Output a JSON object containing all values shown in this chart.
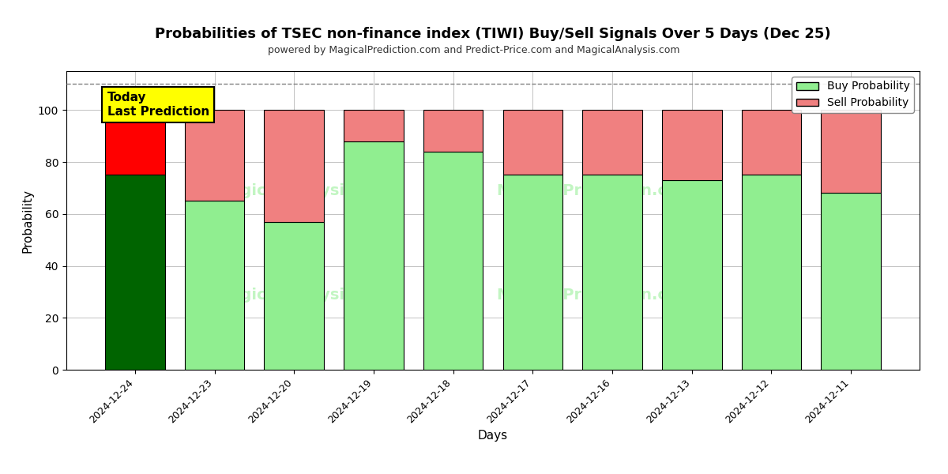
{
  "title": "Probabilities of TSEC non-finance index (TIWI) Buy/Sell Signals Over 5 Days (Dec 25)",
  "subtitle": "powered by MagicalPrediction.com and Predict-Price.com and MagicalAnalysis.com",
  "xlabel": "Days",
  "ylabel": "Probability",
  "categories": [
    "2024-12-24",
    "2024-12-23",
    "2024-12-20",
    "2024-12-19",
    "2024-12-18",
    "2024-12-17",
    "2024-12-16",
    "2024-12-13",
    "2024-12-12",
    "2024-12-11"
  ],
  "buy_values": [
    75,
    65,
    57,
    88,
    84,
    75,
    75,
    73,
    75,
    68
  ],
  "sell_values": [
    25,
    35,
    43,
    12,
    16,
    25,
    25,
    27,
    25,
    32
  ],
  "today_index": 0,
  "buy_color_today": "#006400",
  "sell_color_today": "#FF0000",
  "buy_color_normal": "#90EE90",
  "sell_color_normal": "#F08080",
  "today_label_bg": "#FFFF00",
  "today_label_text": "Today\nLast Prediction",
  "legend_buy": "Buy Probability",
  "legend_sell": "Sell Probability",
  "ylim": [
    0,
    115
  ],
  "yticks": [
    0,
    20,
    40,
    60,
    80,
    100
  ],
  "dashed_line_y": 110,
  "background_color": "#ffffff",
  "grid_color": "#aaaaaa",
  "bar_width": 0.75
}
